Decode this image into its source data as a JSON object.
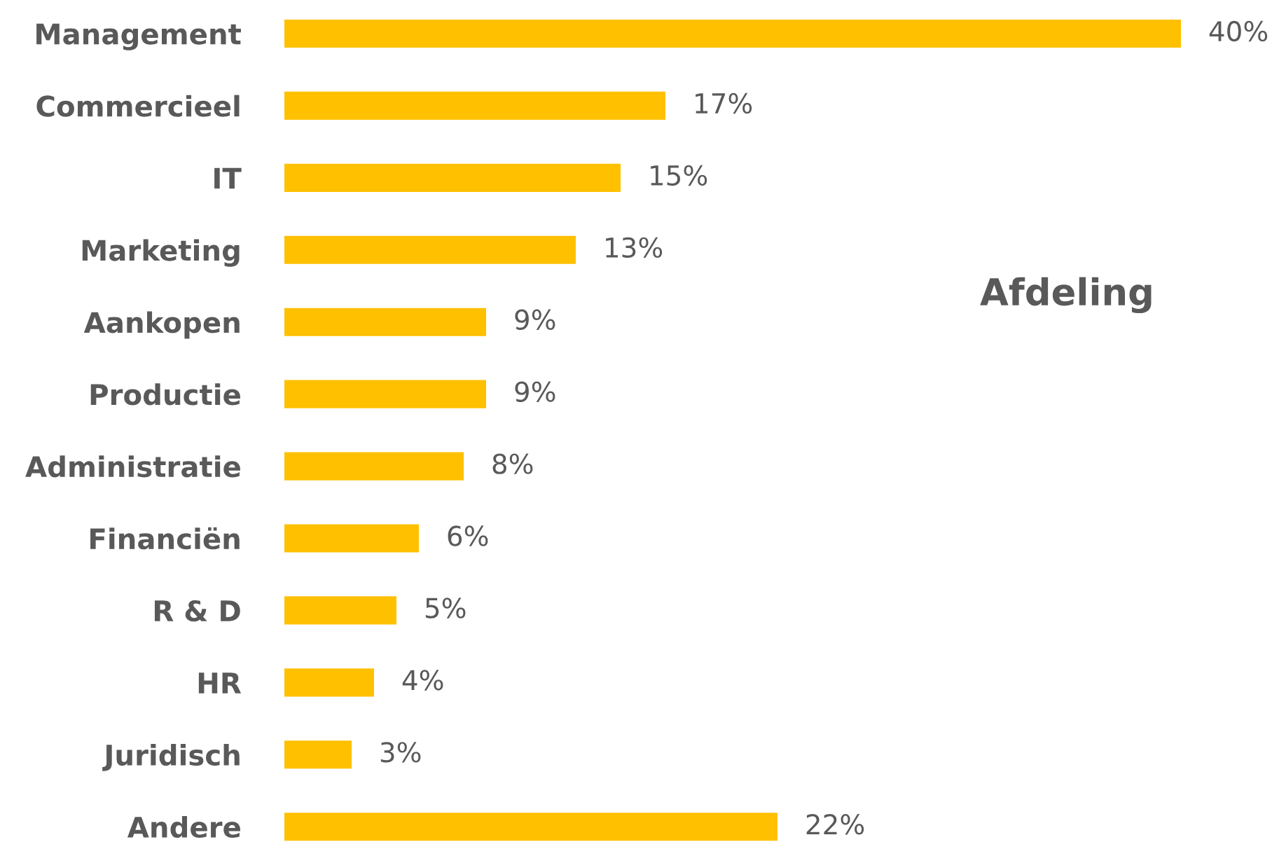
{
  "chart_data": {
    "type": "bar",
    "orientation": "horizontal",
    "title": "Afdeling",
    "categories": [
      "Management",
      "Commercieel",
      "IT",
      "Marketing",
      "Aankopen",
      "Productie",
      "Administratie",
      "Financiën",
      "R & D",
      "HR",
      "Juridisch",
      "Andere"
    ],
    "values": [
      40,
      17,
      15,
      13,
      9,
      9,
      8,
      6,
      5,
      4,
      3,
      22
    ],
    "value_labels": [
      "40%",
      "17%",
      "15%",
      "13%",
      "9%",
      "9%",
      "8%",
      "6%",
      "5%",
      "4%",
      "3%",
      "22%"
    ],
    "color": "#ffc000",
    "grid": false,
    "legend": false
  }
}
